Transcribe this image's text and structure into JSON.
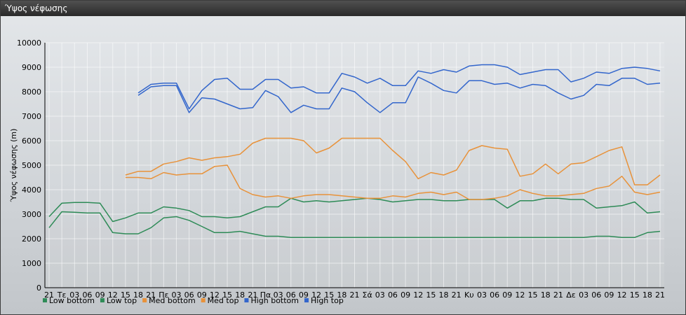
{
  "window": {
    "title": "Ύψος νέφωσης"
  },
  "chart_data": {
    "type": "line",
    "title": "",
    "xlabel": "",
    "ylabel": "Ύψος νέφωσης (m)",
    "ylim": [
      0,
      10000
    ],
    "yticks": [
      0,
      1000,
      2000,
      3000,
      4000,
      5000,
      6000,
      7000,
      8000,
      9000,
      10000
    ],
    "grid": true,
    "legend_position": "bottom-left",
    "categories": [
      "21",
      "Τε",
      "03",
      "06",
      "09",
      "12",
      "15",
      "18",
      "21",
      "Πε",
      "03",
      "06",
      "09",
      "12",
      "15",
      "18",
      "21",
      "Πα",
      "03",
      "06",
      "09",
      "12",
      "15",
      "18",
      "21",
      "Σά",
      "03",
      "06",
      "09",
      "12",
      "15",
      "18",
      "21",
      "Κυ",
      "03",
      "06",
      "09",
      "12",
      "15",
      "18",
      "21",
      "Δε",
      "03",
      "06",
      "09",
      "12",
      "15",
      "18",
      "21"
    ],
    "series": [
      {
        "name": "Low bottom",
        "color": "#2e8b57",
        "values": [
          2450,
          3100,
          3080,
          3050,
          3050,
          2250,
          2200,
          2200,
          2450,
          2850,
          2900,
          2750,
          2500,
          2250,
          2250,
          2300,
          2200,
          2100,
          2100,
          2050,
          2050,
          2050,
          2050,
          2050,
          2050,
          2050,
          2050,
          2050,
          2050,
          2050,
          2050,
          2050,
          2050,
          2050,
          2050,
          2050,
          2050,
          2050,
          2050,
          2050,
          2050,
          2050,
          2050,
          2100,
          2100,
          2050,
          2050,
          2250,
          2300
        ]
      },
      {
        "name": "Low top",
        "color": "#2e8b57",
        "values": [
          2900,
          3450,
          3480,
          3480,
          3450,
          2700,
          2850,
          3050,
          3050,
          3300,
          3250,
          3150,
          2900,
          2900,
          2850,
          2900,
          3100,
          3300,
          3300,
          3650,
          3500,
          3550,
          3500,
          3550,
          3600,
          3650,
          3600,
          3500,
          3550,
          3600,
          3600,
          3550,
          3550,
          3600,
          3600,
          3600,
          3250,
          3550,
          3550,
          3650,
          3650,
          3600,
          3600,
          3250,
          3300,
          3350,
          3500,
          3050,
          3100
        ]
      },
      {
        "name": "Med bottom",
        "color": "#e8923a",
        "values": [
          null,
          null,
          null,
          null,
          null,
          null,
          4500,
          4500,
          4450,
          4700,
          4600,
          4650,
          4650,
          4950,
          5000,
          4050,
          3800,
          3700,
          3750,
          3650,
          3750,
          3800,
          3800,
          3750,
          3700,
          3650,
          3650,
          3750,
          3700,
          3850,
          3900,
          3800,
          3900,
          3600,
          3600,
          3650,
          3750,
          4000,
          3850,
          3750,
          3750,
          3800,
          3850,
          4050,
          4150,
          4550,
          3900,
          3800,
          3900
        ]
      },
      {
        "name": "Med top",
        "color": "#e8923a",
        "values": [
          null,
          null,
          null,
          null,
          null,
          null,
          4600,
          4750,
          4750,
          5050,
          5150,
          5300,
          5200,
          5300,
          5350,
          5450,
          5900,
          6100,
          6100,
          6100,
          6000,
          5500,
          5700,
          6100,
          6100,
          6100,
          6100,
          5600,
          5150,
          4450,
          4700,
          4600,
          4800,
          5600,
          5800,
          5700,
          5650,
          4550,
          4650,
          5050,
          4650,
          5050,
          5100,
          5350,
          5600,
          5750,
          4200,
          4200,
          4600
        ]
      },
      {
        "name": "High bottom",
        "color": "#3366cc",
        "values": [
          null,
          null,
          null,
          null,
          null,
          null,
          null,
          7850,
          8200,
          8250,
          8250,
          7150,
          7750,
          7700,
          7500,
          7300,
          7350,
          8050,
          7800,
          7150,
          7450,
          7300,
          7300,
          8150,
          8000,
          7550,
          7150,
          7550,
          7550,
          8600,
          8350,
          8050,
          7950,
          8450,
          8450,
          8300,
          8350,
          8150,
          8300,
          8250,
          7950,
          7700,
          7850,
          8300,
          8250,
          8550,
          8550,
          8300,
          8350
        ]
      },
      {
        "name": "High top",
        "color": "#3366cc",
        "values": [
          null,
          null,
          null,
          null,
          null,
          null,
          null,
          7950,
          8300,
          8350,
          8350,
          7300,
          8050,
          8500,
          8550,
          8100,
          8100,
          8500,
          8500,
          8150,
          8200,
          7950,
          7950,
          8750,
          8600,
          8350,
          8550,
          8250,
          8250,
          8850,
          8750,
          8900,
          8800,
          9050,
          9100,
          9100,
          9000,
          8700,
          8800,
          8900,
          8900,
          8400,
          8550,
          8800,
          8750,
          8950,
          9000,
          8950,
          8850
        ]
      }
    ]
  }
}
